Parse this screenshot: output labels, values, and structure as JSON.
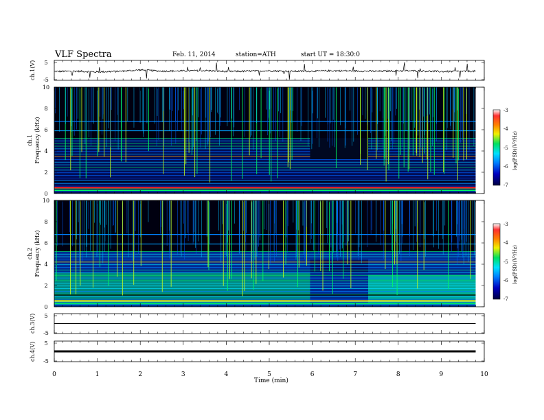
{
  "header": {
    "title": "VLF  Spectra",
    "date": "Feb. 11, 2014",
    "station": "station=ATH",
    "start": "start  UT  =   18:30:0"
  },
  "colors": {
    "background": "#ffffff",
    "axes": "#000000",
    "spectrogram_dark": "#000000",
    "colorbar_stops": [
      "#000040",
      "#0000c0",
      "#0080ff",
      "#00e0ff",
      "#00e060",
      "#f0f000",
      "#ff8000",
      "#ff3030",
      "#ffffff"
    ]
  },
  "chart_data": [
    {
      "type": "line",
      "name": "ch1-waveform",
      "ylabel": "ch.1(V)",
      "ylim": [
        -5,
        5
      ],
      "yticks": [
        "5",
        "-5"
      ],
      "x": [
        0,
        0.5,
        1,
        1.5,
        2,
        2.5,
        3,
        3.5,
        4,
        4.5,
        5,
        5.5,
        6,
        6.5,
        7,
        7.5,
        8,
        8.5,
        9,
        9.5,
        9.8
      ],
      "values": [
        -0.6,
        -0.4,
        -0.8,
        -0.5,
        0.2,
        -0.4,
        -0.3,
        -0.1,
        -0.6,
        -0.4,
        -0.2,
        -0.5,
        -0.4,
        -0.2,
        -0.3,
        -0.5,
        -0.2,
        -0.3,
        -0.6,
        -0.5,
        -0.4
      ],
      "grid": false
    },
    {
      "type": "heatmap",
      "name": "ch1-spectrogram",
      "ylabel": "ch.1\nFrequency  (kHz)",
      "ylim": [
        0,
        10
      ],
      "yticks": [
        "0",
        "2",
        "4",
        "6",
        "8",
        "10"
      ],
      "xlim": [
        0,
        10
      ],
      "data_extent_minutes": 9.8,
      "colorbar": {
        "label": "log(PSD)(V²/Hz)",
        "range": [
          -7,
          -3
        ],
        "ticks": [
          "-3",
          "-4",
          "-5",
          "-6",
          "-7"
        ]
      },
      "change_interval_minutes": [
        5.95,
        7.3
      ]
    },
    {
      "type": "heatmap",
      "name": "ch2-spectrogram",
      "ylabel": "ch.2\nFrequency  (kHz)",
      "ylim": [
        0,
        10
      ],
      "yticks": [
        "0",
        "2",
        "4",
        "6",
        "8",
        "10"
      ],
      "xlim": [
        0,
        10
      ],
      "data_extent_minutes": 9.8,
      "colorbar": {
        "label": "log(PSD)(V²/Hz)",
        "range": [
          -7,
          -3
        ],
        "ticks": [
          "-3",
          "-4",
          "-5",
          "-6",
          "-7"
        ]
      },
      "change_interval_minutes": [
        5.95,
        7.3
      ]
    },
    {
      "type": "line",
      "name": "ch3-waveform",
      "ylabel": "ch.3(V)",
      "ylim": [
        -5,
        5
      ],
      "yticks": [
        "5",
        "-5"
      ],
      "x": [
        0,
        9.8
      ],
      "values": [
        0,
        0
      ]
    },
    {
      "type": "line",
      "name": "ch4-waveform",
      "ylabel": "ch.4(V)",
      "ylim": [
        -5,
        5
      ],
      "yticks": [
        "5",
        "-5"
      ],
      "x": [
        0,
        9.8
      ],
      "values": [
        0,
        0
      ]
    }
  ],
  "x_axis": {
    "label": "Time  (min)",
    "range": [
      0,
      10
    ],
    "ticks": [
      "0",
      "1",
      "2",
      "3",
      "4",
      "5",
      "6",
      "7",
      "8",
      "9",
      "10"
    ]
  }
}
